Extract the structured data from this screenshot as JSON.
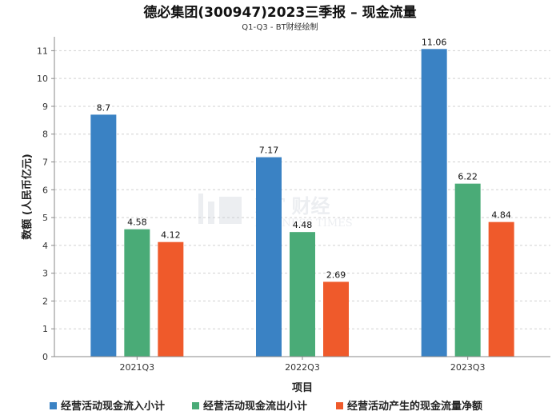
{
  "chart_data": {
    "type": "bar",
    "title": "德必集团(300947)2023三季报 – 现金流量",
    "subtitle": "Q1-Q3 - BT财经绘制",
    "xlabel": "项目",
    "ylabel": "数额 (人民币亿元)",
    "ylim": [
      0,
      11.5
    ],
    "yticks": [
      0,
      1,
      2,
      3,
      4,
      5,
      6,
      7,
      8,
      9,
      10,
      11
    ],
    "grid": true,
    "legend_position": "bottom",
    "categories": [
      "2021Q3",
      "2022Q3",
      "2023Q3"
    ],
    "series": [
      {
        "name": "经营活动现金流入小计",
        "color": "#3a82c4",
        "values": [
          8.7,
          7.17,
          11.06
        ]
      },
      {
        "name": "经营活动现金流出小计",
        "color": "#4aab77",
        "values": [
          4.58,
          4.48,
          6.22
        ]
      },
      {
        "name": "经营活动产生的现金流量净额",
        "color": "#ef5a2b",
        "values": [
          4.12,
          2.69,
          4.84
        ]
      }
    ],
    "watermark": {
      "brand": "BT 财经",
      "sub": "BUSINESS TIMES"
    }
  }
}
